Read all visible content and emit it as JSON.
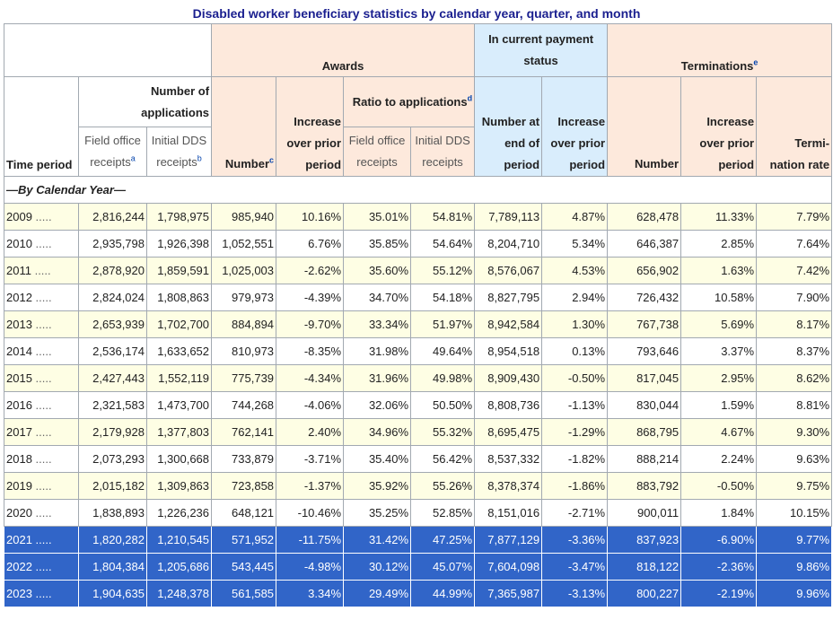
{
  "title": "Disabled worker beneficiary statistics by calendar year, quarter, and month",
  "colors": {
    "peach": "#fde9dc",
    "blue": "#d9edfc",
    "highlight": "#3165c8",
    "odd_row": "#fefee4"
  },
  "headers": {
    "awards": "Awards",
    "in_payment": "In current payment status",
    "terminations": "Terminations",
    "terminations_note": "e",
    "number_of_applications": "Number of applications",
    "ratio_to_applications": "Ratio to applications",
    "ratio_note": "d",
    "time_period": "Time period",
    "field_office_receipts": "Field office receipts",
    "field_office_note": "a",
    "initial_dds_receipts": "Initial DDS receipts",
    "initial_dds_note": "b",
    "awards_number": "Number",
    "awards_number_note": "c",
    "awards_increase": "Increase over prior period",
    "ratio_field_office": "Field office receipts",
    "ratio_initial_dds": "Initial DDS receipts",
    "pay_number": "Number at end of period",
    "pay_increase": "Increase over prior period",
    "term_number": "Number",
    "term_increase": "Increase over prior period",
    "term_rate": "Termi- nation rate"
  },
  "section_label": "—By Calendar Year—",
  "row_dots": ".....",
  "rows": [
    [
      "2009",
      "2,816,244",
      "1,798,975",
      "985,940",
      "10.16%",
      "35.01%",
      "54.81%",
      "7,789,113",
      "4.87%",
      "628,478",
      "11.33%",
      "7.79%"
    ],
    [
      "2010",
      "2,935,798",
      "1,926,398",
      "1,052,551",
      "6.76%",
      "35.85%",
      "54.64%",
      "8,204,710",
      "5.34%",
      "646,387",
      "2.85%",
      "7.64%"
    ],
    [
      "2011",
      "2,878,920",
      "1,859,591",
      "1,025,003",
      "-2.62%",
      "35.60%",
      "55.12%",
      "8,576,067",
      "4.53%",
      "656,902",
      "1.63%",
      "7.42%"
    ],
    [
      "2012",
      "2,824,024",
      "1,808,863",
      "979,973",
      "-4.39%",
      "34.70%",
      "54.18%",
      "8,827,795",
      "2.94%",
      "726,432",
      "10.58%",
      "7.90%"
    ],
    [
      "2013",
      "2,653,939",
      "1,702,700",
      "884,894",
      "-9.70%",
      "33.34%",
      "51.97%",
      "8,942,584",
      "1.30%",
      "767,738",
      "5.69%",
      "8.17%"
    ],
    [
      "2014",
      "2,536,174",
      "1,633,652",
      "810,973",
      "-8.35%",
      "31.98%",
      "49.64%",
      "8,954,518",
      "0.13%",
      "793,646",
      "3.37%",
      "8.37%"
    ],
    [
      "2015",
      "2,427,443",
      "1,552,119",
      "775,739",
      "-4.34%",
      "31.96%",
      "49.98%",
      "8,909,430",
      "-0.50%",
      "817,045",
      "2.95%",
      "8.62%"
    ],
    [
      "2016",
      "2,321,583",
      "1,473,700",
      "744,268",
      "-4.06%",
      "32.06%",
      "50.50%",
      "8,808,736",
      "-1.13%",
      "830,044",
      "1.59%",
      "8.81%"
    ],
    [
      "2017",
      "2,179,928",
      "1,377,803",
      "762,141",
      "2.40%",
      "34.96%",
      "55.32%",
      "8,695,475",
      "-1.29%",
      "868,795",
      "4.67%",
      "9.30%"
    ],
    [
      "2018",
      "2,073,293",
      "1,300,668",
      "733,879",
      "-3.71%",
      "35.40%",
      "56.42%",
      "8,537,332",
      "-1.82%",
      "888,214",
      "2.24%",
      "9.63%"
    ],
    [
      "2019",
      "2,015,182",
      "1,309,863",
      "723,858",
      "-1.37%",
      "35.92%",
      "55.26%",
      "8,378,374",
      "-1.86%",
      "883,792",
      "-0.50%",
      "9.75%"
    ],
    [
      "2020",
      "1,838,893",
      "1,226,236",
      "648,121",
      "-10.46%",
      "35.25%",
      "52.85%",
      "8,151,016",
      "-2.71%",
      "900,011",
      "1.84%",
      "10.15%"
    ],
    [
      "2021",
      "1,820,282",
      "1,210,545",
      "571,952",
      "-11.75%",
      "31.42%",
      "47.25%",
      "7,877,129",
      "-3.36%",
      "837,923",
      "-6.90%",
      "9.77%"
    ],
    [
      "2022",
      "1,804,384",
      "1,205,686",
      "543,445",
      "-4.98%",
      "30.12%",
      "45.07%",
      "7,604,098",
      "-3.47%",
      "818,122",
      "-2.36%",
      "9.86%"
    ],
    [
      "2023",
      "1,904,635",
      "1,248,378",
      "561,585",
      "3.34%",
      "29.49%",
      "44.99%",
      "7,365,987",
      "-3.13%",
      "800,227",
      "-2.19%",
      "9.96%"
    ]
  ],
  "selected_rows": [
    "2021",
    "2022",
    "2023"
  ]
}
